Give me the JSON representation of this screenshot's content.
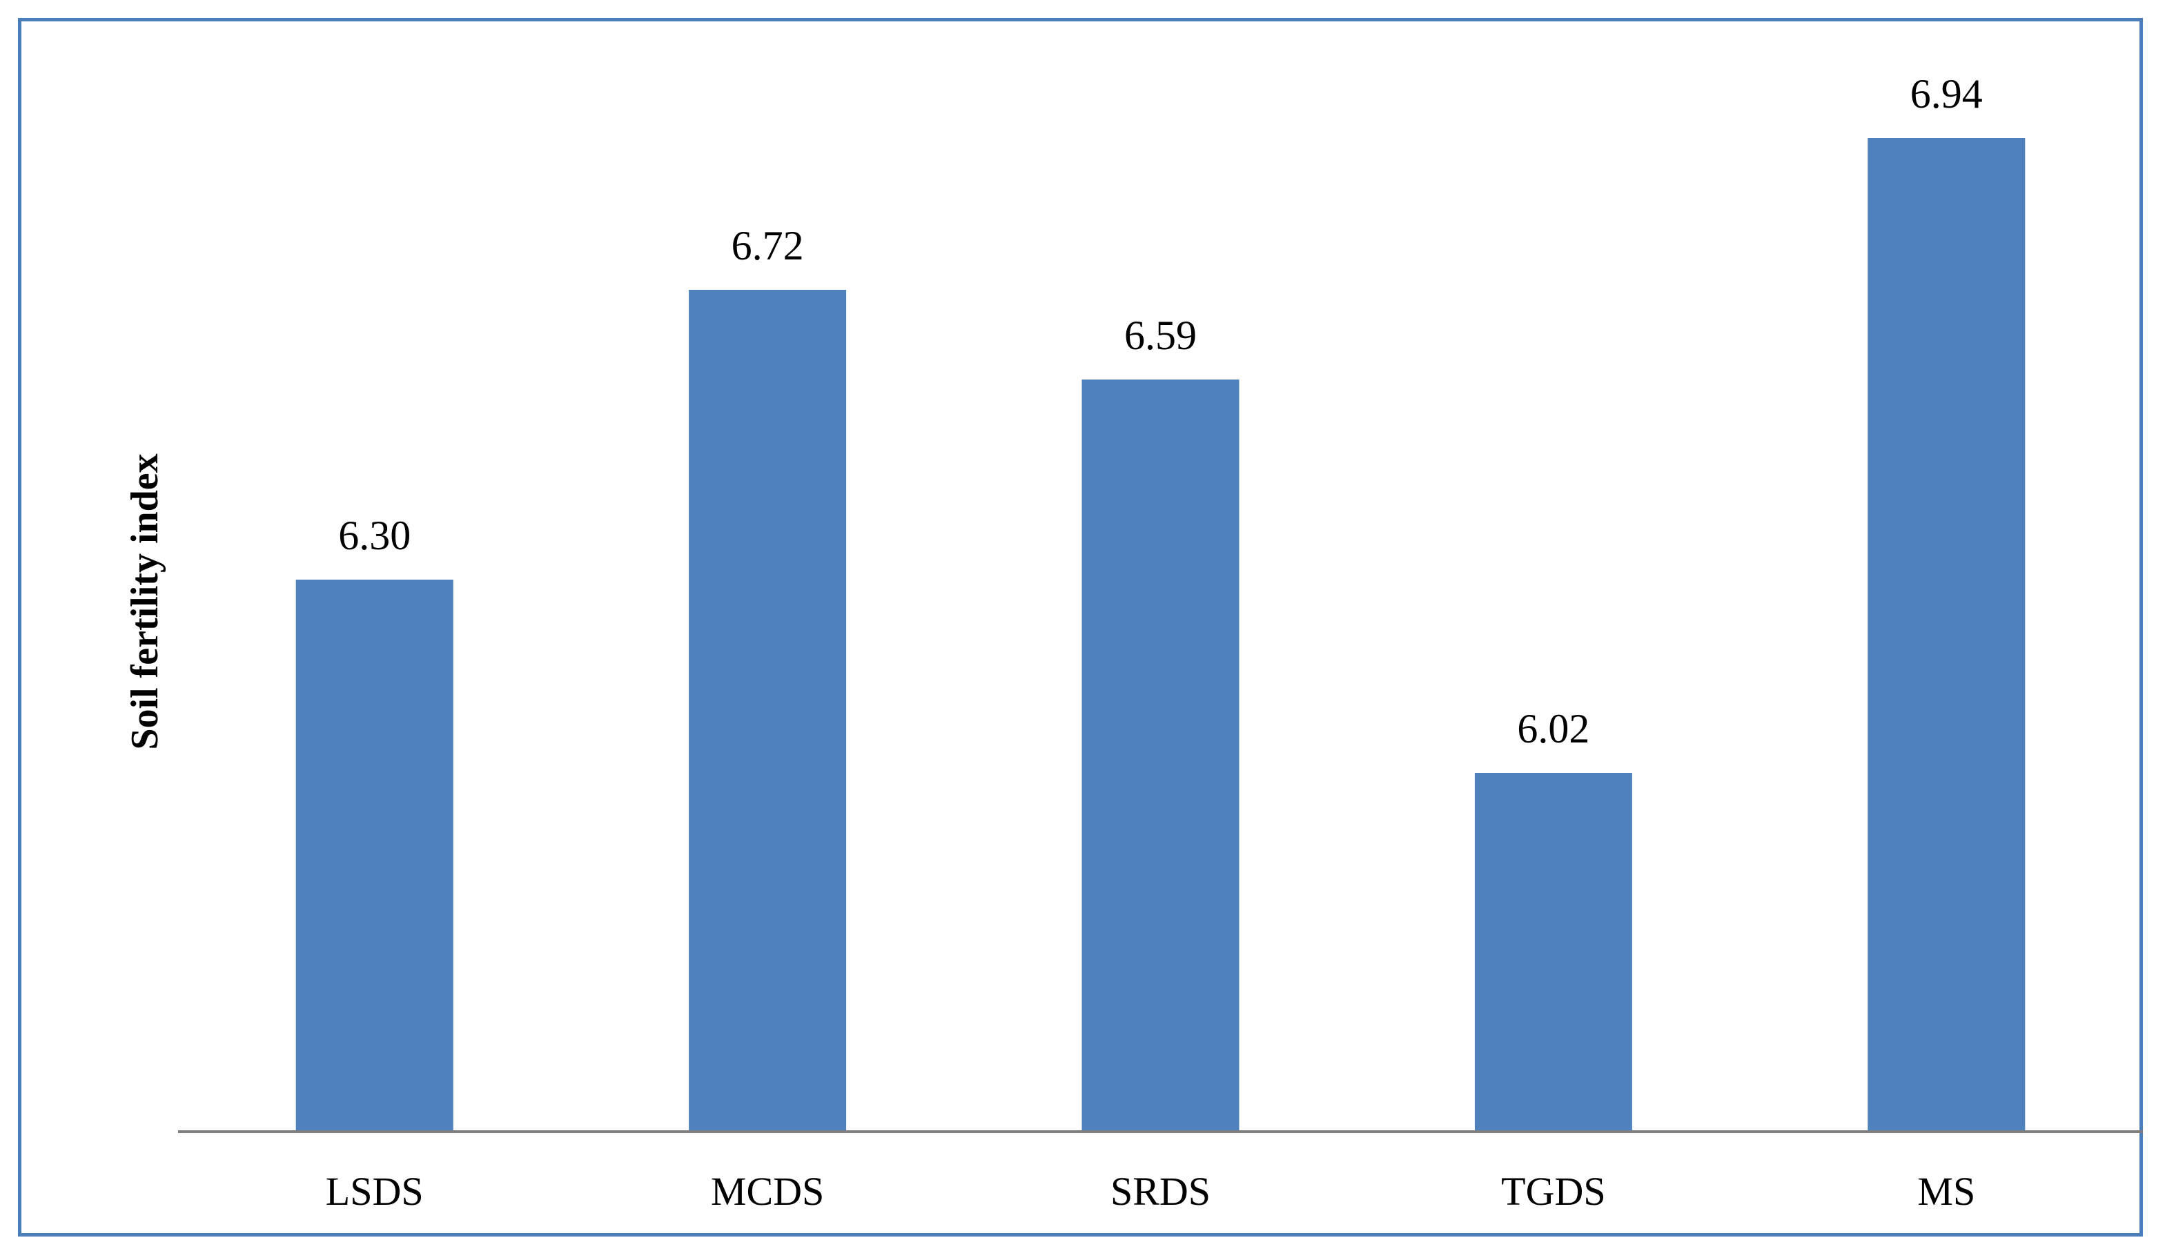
{
  "chart_data": {
    "type": "bar",
    "categories": [
      "LSDS",
      "MCDS",
      "SRDS",
      "TGDS",
      "MS"
    ],
    "values": [
      6.3,
      6.72,
      6.59,
      6.02,
      6.94
    ],
    "value_labels": [
      "6.30",
      "6.72",
      "6.59",
      "6.02",
      "6.94"
    ],
    "title": "",
    "xlabel": "",
    "ylabel": "Soil fertility index",
    "ylim": [
      5.5,
      7.05
    ],
    "grid": false,
    "legend": "none",
    "bar_color": "#4f81bd",
    "axis_color": "#7f7f7f",
    "frame_color": "#4a7ebb"
  }
}
